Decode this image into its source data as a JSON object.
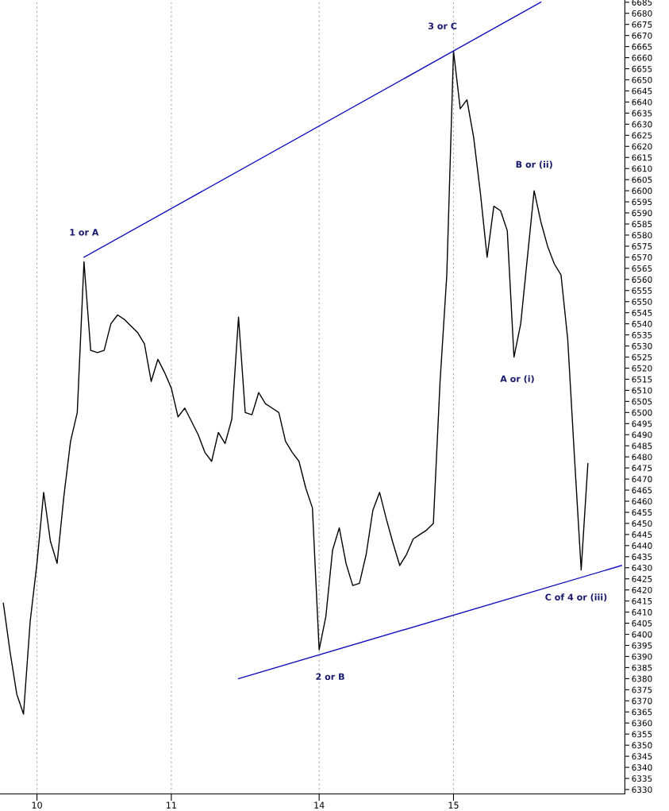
{
  "chart_data": {
    "type": "line",
    "categories": [
      null,
      null,
      null,
      null,
      null,
      "10",
      null,
      null,
      null,
      null,
      null,
      null,
      null,
      null,
      null,
      null,
      null,
      null,
      null,
      null,
      null,
      null,
      null,
      null,
      null,
      "11",
      null,
      null,
      null,
      null,
      null,
      null,
      null,
      null,
      null,
      null,
      null,
      null,
      null,
      null,
      null,
      null,
      null,
      null,
      null,
      null,
      null,
      "14",
      null,
      null,
      null,
      null,
      null,
      null,
      null,
      null,
      null,
      null,
      null,
      null,
      null,
      null,
      null,
      null,
      null,
      null,
      null,
      "15",
      null,
      null,
      null,
      null,
      null,
      null,
      null,
      null,
      null,
      null,
      null,
      null,
      null,
      null,
      null,
      null,
      null,
      null,
      null,
      null,
      null,
      null,
      null,
      null,
      null
    ],
    "series": [
      {
        "color": "#000000",
        "values": [
          6414,
          6392,
          6373,
          6364,
          6406,
          6432,
          6464,
          6442,
          6432,
          6462,
          6487,
          6500,
          6568,
          6528,
          6527,
          6528,
          6540,
          6544,
          6542,
          6539,
          6536,
          6531,
          6514,
          6524,
          6518,
          6511,
          6498,
          6502,
          6496,
          6490,
          6482,
          6478,
          6491,
          6486,
          6497,
          6543,
          6500,
          6499,
          6509,
          6504,
          6502,
          6500,
          6487,
          6482,
          6478,
          6466,
          6457,
          6393,
          6408,
          6438,
          6448,
          6432,
          6422,
          6423,
          6436,
          6456,
          6464,
          6452,
          6441,
          6431,
          6436,
          6443,
          6445,
          6447,
          6450,
          6514,
          6562,
          6663,
          6637,
          6641,
          6624,
          6599,
          6570,
          6593,
          6591,
          6582,
          6525,
          6540,
          6570,
          6600,
          6586,
          6575,
          6567,
          6562,
          6533,
          6480,
          6429,
          6477,
          null,
          null,
          null,
          null,
          null
        ]
      },
      {
        "color": "#1010c0",
        "values": [
          null,
          null,
          null,
          null,
          null,
          null,
          null,
          null,
          null,
          null,
          null,
          null,
          6570,
          null,
          null,
          null,
          null,
          null,
          null,
          null,
          null,
          null,
          null,
          null,
          null,
          null,
          null,
          null,
          null,
          null,
          null,
          null,
          null,
          null,
          null,
          null,
          null,
          null,
          null,
          null,
          null,
          null,
          null,
          null,
          null,
          null,
          null,
          null,
          null,
          null,
          null,
          null,
          null,
          null,
          null,
          null,
          null,
          null,
          null,
          null,
          null,
          null,
          null,
          null,
          null,
          null,
          null,
          6663,
          null,
          null,
          null,
          null,
          null,
          null,
          null,
          null,
          null,
          null,
          null,
          null,
          6685,
          null,
          null,
          null,
          null,
          null,
          null,
          null,
          null,
          null,
          null,
          null,
          null
        ]
      },
      {
        "color": "#1010c0",
        "values": [
          null,
          null,
          null,
          null,
          null,
          null,
          null,
          null,
          null,
          null,
          null,
          null,
          null,
          null,
          null,
          null,
          null,
          null,
          null,
          null,
          null,
          null,
          null,
          null,
          null,
          null,
          null,
          null,
          null,
          null,
          null,
          null,
          null,
          null,
          null,
          6380,
          null,
          null,
          null,
          null,
          null,
          null,
          null,
          null,
          null,
          null,
          null,
          null,
          null,
          null,
          null,
          null,
          null,
          null,
          null,
          null,
          null,
          null,
          null,
          null,
          null,
          null,
          null,
          null,
          null,
          null,
          null,
          null,
          null,
          null,
          null,
          null,
          null,
          null,
          null,
          null,
          null,
          null,
          null,
          null,
          null,
          null,
          null,
          null,
          null,
          null,
          null,
          null,
          null,
          null,
          null,
          null,
          6431
        ]
      }
    ],
    "annotations": [
      {
        "text": "1 or A",
        "y": 6568
      },
      {
        "text": "3 or C",
        "x": "15",
        "y": 6663
      },
      {
        "text": "2 or B",
        "x": "14",
        "y": 6393
      },
      "B or (ii)",
      "A or (i)",
      "C of 4 or (iii)"
    ],
    "ylim": [
      6328,
      6686
    ],
    "yticks": [
      6330,
      6335,
      6340,
      6345,
      6350,
      6355,
      6360,
      6365,
      6370,
      6375,
      6380,
      6385,
      6390,
      6395,
      6400,
      6405,
      6410,
      6415,
      6420,
      6425,
      6430,
      6435,
      6440,
      6445,
      6450,
      6455,
      6460,
      6465,
      6470,
      6475,
      6480,
      6485,
      6490,
      6495,
      6500,
      6505,
      6510,
      6515,
      6520,
      6525,
      6530,
      6535,
      6540,
      6545,
      6550,
      6555,
      6560,
      6565,
      6570,
      6575,
      6580,
      6585,
      6590,
      6595,
      6600,
      6605,
      6610,
      6615,
      6620,
      6625,
      6630,
      6635,
      6640,
      6645,
      6650,
      6655,
      6660,
      6665,
      6670,
      6675,
      6680,
      6685
    ],
    "grid": "x",
    "marker": "none",
    "line_style": "solid"
  }
}
